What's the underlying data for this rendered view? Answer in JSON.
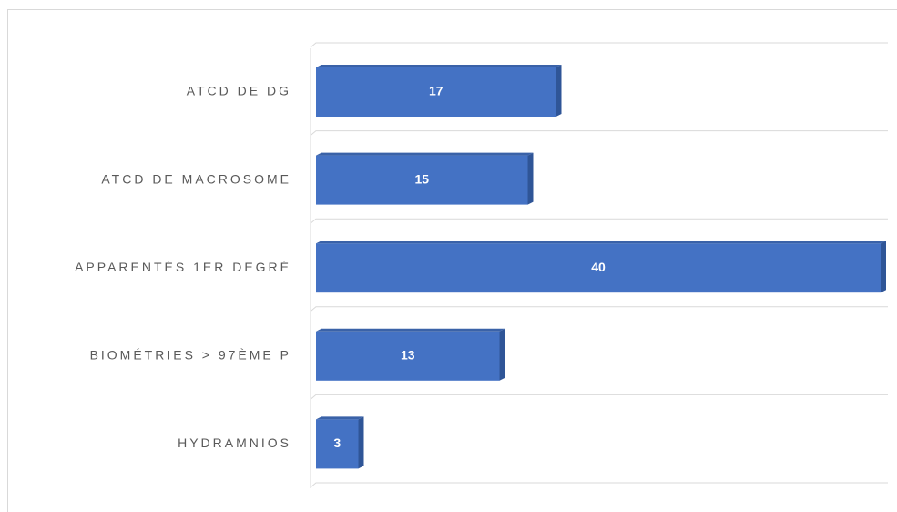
{
  "chart_data": {
    "type": "bar",
    "orientation": "horizontal",
    "categories": [
      "ATCD DE DG",
      "ATCD DE MACROSOME",
      "APPARENTÉS 1ER DEGRÉ",
      "BIOMÉTRIES > 97ÈME P",
      "HYDRAMNIOS"
    ],
    "values": [
      17,
      15,
      40,
      13,
      3
    ],
    "color": "#4472c4",
    "grid": true
  }
}
